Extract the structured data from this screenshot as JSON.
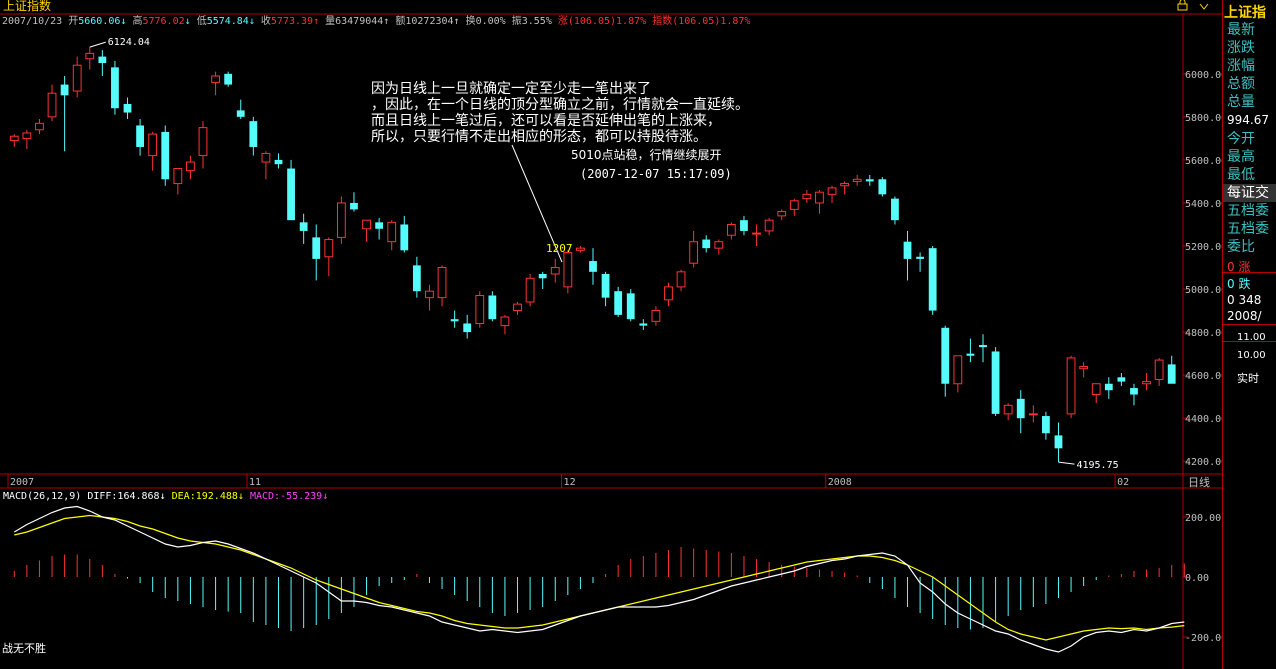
{
  "window": {
    "title": "上证指数",
    "footer_text": "战无不胜"
  },
  "header": {
    "date": "2007/10/23",
    "open_label": "开",
    "open_value": "5660.06",
    "open_arrow": "↓",
    "high_label": "高",
    "high_value": "5776.02",
    "high_arrow": "↓",
    "low_label": "低",
    "low_value": "5574.84",
    "low_arrow": "↓",
    "close_label": "收",
    "close_value": "5773.39",
    "close_arrow": "↑",
    "volume_label": "量",
    "volume_value": "63479044",
    "volume_arrow": "↑",
    "amount_label": "额",
    "amount_value": "10272304",
    "amount_arrow": "↑",
    "turnover_label": "换",
    "turnover_value": "0.00%",
    "amplitude_label": "振",
    "amplitude_value": "3.55%",
    "change_label": "涨",
    "change_value": "(106.05)1.87%",
    "index_label": "指数",
    "index_value": "(106.05)1.87%"
  },
  "annotations": {
    "comment_lines": [
      "因为日线上一旦就确定一定至少走一笔出来了",
      "，因此，在一个日线的顶分型确立之前，行情就会一直延续。",
      "而且日线上一笔过后，还可以看是否延伸出笔的上涨来，",
      "所以，只要行情不走出相应的形态，都可以持股待涨。"
    ],
    "note_line1": "5010点站稳，行情继续展开",
    "note_line2": "(2007-12-07 15:17:09)",
    "point_label": "1207",
    "high_marker": "6124.04",
    "low_marker": "4195.75"
  },
  "macd": {
    "title": "MACD(26,12,9)",
    "diff_label": "DIFF:",
    "diff_value": "164.868",
    "diff_arrow": "↓",
    "dea_label": "DEA:",
    "dea_value": "192.488",
    "dea_arrow": "↓",
    "macd_label": "MACD:",
    "macd_value": "-55.239",
    "macd_arrow": "↓"
  },
  "sidebar": {
    "title": "上证指",
    "labels_top": [
      "最新",
      "涨跌",
      "涨幅",
      "总额",
      "总量"
    ],
    "total_volume_value": "994.67",
    "labels_mid": [
      "今开",
      "最高",
      "最低"
    ],
    "tabs": [
      "每证交",
      "五档委",
      "五档委",
      "委比"
    ],
    "rows": [
      "0 涨",
      "0 跌",
      "0 348"
    ],
    "date_row": "2008/",
    "vol_ticks": [
      "11.00",
      "10.00"
    ],
    "realtime_label": "实时"
  },
  "colors": {
    "up": "#ff3232",
    "down": "#54fcfc",
    "axis": "#b00000",
    "diff_line": "#ffffff",
    "dea_line": "#ffff00",
    "label_yellow": "#ffd400"
  },
  "chart_data": [
    {
      "type": "candlestick",
      "title": "上证指数",
      "ylim": [
        4150,
        6250
      ],
      "yticks": [
        4200,
        4400,
        4600,
        4800,
        5000,
        5200,
        5400,
        5600,
        5800,
        6000
      ],
      "x_labels": [
        {
          "index": 0,
          "label": "2007"
        },
        {
          "index": 19,
          "label": "11"
        },
        {
          "index": 44,
          "label": "12"
        },
        {
          "index": 65,
          "label": "2008"
        },
        {
          "index": 88,
          "label": "02"
        }
      ],
      "bars": [
        [
          5690,
          5720,
          5660,
          5710
        ],
        [
          5700,
          5740,
          5650,
          5725
        ],
        [
          5740,
          5790,
          5720,
          5770
        ],
        [
          5800,
          5950,
          5780,
          5910
        ],
        [
          5950,
          5990,
          5640,
          5900
        ],
        [
          5920,
          6080,
          5890,
          6040
        ],
        [
          6070,
          6124,
          6020,
          6095
        ],
        [
          6080,
          6110,
          5990,
          6050
        ],
        [
          6030,
          6060,
          5810,
          5840
        ],
        [
          5860,
          5890,
          5790,
          5820
        ],
        [
          5760,
          5790,
          5620,
          5660
        ],
        [
          5620,
          5730,
          5550,
          5720
        ],
        [
          5730,
          5760,
          5480,
          5510
        ],
        [
          5490,
          5540,
          5440,
          5560
        ],
        [
          5550,
          5620,
          5510,
          5590
        ],
        [
          5620,
          5780,
          5560,
          5750
        ],
        [
          5960,
          6010,
          5900,
          5990
        ],
        [
          6000,
          6010,
          5940,
          5950
        ],
        [
          5830,
          5880,
          5790,
          5800
        ],
        [
          5780,
          5800,
          5620,
          5660
        ],
        [
          5590,
          5640,
          5510,
          5630
        ],
        [
          5600,
          5630,
          5560,
          5580
        ],
        [
          5560,
          5600,
          5360,
          5320
        ],
        [
          5310,
          5350,
          5210,
          5270
        ],
        [
          5240,
          5300,
          5040,
          5140
        ],
        [
          5150,
          5240,
          5060,
          5230
        ],
        [
          5240,
          5430,
          5210,
          5400
        ],
        [
          5400,
          5450,
          5360,
          5370
        ],
        [
          5280,
          5320,
          5220,
          5320
        ],
        [
          5310,
          5330,
          5230,
          5280
        ],
        [
          5220,
          5320,
          5180,
          5310
        ],
        [
          5300,
          5340,
          5170,
          5180
        ],
        [
          5110,
          5150,
          4960,
          4990
        ],
        [
          4960,
          5020,
          4900,
          4990
        ],
        [
          4960,
          5110,
          4920,
          5100
        ],
        [
          4860,
          4900,
          4820,
          4850
        ],
        [
          4840,
          4880,
          4770,
          4800
        ],
        [
          4840,
          4990,
          4820,
          4970
        ],
        [
          4970,
          4990,
          4850,
          4860
        ],
        [
          4830,
          4880,
          4790,
          4870
        ],
        [
          4900,
          4940,
          4880,
          4930
        ],
        [
          4940,
          5070,
          4920,
          5050
        ],
        [
          5070,
          5080,
          5000,
          5050
        ],
        [
          5070,
          5140,
          5030,
          5100
        ],
        [
          5010,
          5180,
          4980,
          5170
        ],
        [
          5180,
          5200,
          5170,
          5190
        ],
        [
          5130,
          5190,
          5020,
          5080
        ],
        [
          5070,
          5080,
          4920,
          4960
        ],
        [
          4990,
          5010,
          4870,
          4880
        ],
        [
          4980,
          5000,
          4850,
          4860
        ],
        [
          4840,
          4860,
          4810,
          4830
        ],
        [
          4850,
          4920,
          4830,
          4900
        ],
        [
          4950,
          5030,
          4920,
          5010
        ],
        [
          5010,
          5090,
          4990,
          5080
        ],
        [
          5120,
          5270,
          5100,
          5220
        ],
        [
          5230,
          5250,
          5170,
          5190
        ],
        [
          5190,
          5230,
          5160,
          5220
        ],
        [
          5250,
          5310,
          5230,
          5300
        ],
        [
          5320,
          5340,
          5250,
          5270
        ],
        [
          5260,
          5300,
          5200,
          5260
        ],
        [
          5270,
          5330,
          5250,
          5320
        ],
        [
          5340,
          5370,
          5320,
          5360
        ],
        [
          5370,
          5420,
          5340,
          5410
        ],
        [
          5420,
          5460,
          5400,
          5440
        ],
        [
          5400,
          5460,
          5350,
          5450
        ],
        [
          5440,
          5480,
          5400,
          5470
        ],
        [
          5480,
          5500,
          5440,
          5490
        ],
        [
          5500,
          5530,
          5480,
          5510
        ],
        [
          5510,
          5530,
          5480,
          5500
        ],
        [
          5510,
          5520,
          5430,
          5440
        ],
        [
          5420,
          5430,
          5300,
          5320
        ],
        [
          5220,
          5270,
          5040,
          5140
        ],
        [
          5150,
          5170,
          5080,
          5140
        ],
        [
          5190,
          5200,
          4880,
          4900
        ],
        [
          4820,
          4830,
          4500,
          4560
        ],
        [
          4560,
          4680,
          4520,
          4690
        ],
        [
          4700,
          4770,
          4660,
          4690
        ],
        [
          4740,
          4790,
          4660,
          4730
        ],
        [
          4710,
          4730,
          4410,
          4420
        ],
        [
          4420,
          4470,
          4390,
          4460
        ],
        [
          4490,
          4530,
          4330,
          4400
        ],
        [
          4420,
          4460,
          4380,
          4420
        ],
        [
          4410,
          4430,
          4300,
          4330
        ],
        [
          4320,
          4380,
          4196,
          4260
        ],
        [
          4420,
          4690,
          4400,
          4680
        ],
        [
          4630,
          4660,
          4590,
          4640
        ],
        [
          4510,
          4530,
          4470,
          4560
        ],
        [
          4560,
          4590,
          4490,
          4530
        ],
        [
          4590,
          4610,
          4550,
          4570
        ],
        [
          4540,
          4560,
          4460,
          4510
        ],
        [
          4560,
          4610,
          4530,
          4570
        ],
        [
          4580,
          4680,
          4550,
          4670
        ],
        [
          4650,
          4690,
          4570,
          4560
        ]
      ]
    },
    {
      "type": "line",
      "title": "MACD(26,12,9)",
      "ylim": [
        -260,
        290
      ],
      "yticks": [
        -200,
        0,
        200
      ],
      "series": [
        {
          "name": "DIFF",
          "values": [
            150,
            175,
            195,
            215,
            230,
            235,
            220,
            200,
            190,
            170,
            150,
            130,
            110,
            100,
            105,
            115,
            120,
            110,
            95,
            80,
            60,
            40,
            20,
            0,
            -20,
            -50,
            -80,
            -80,
            -85,
            -95,
            -100,
            -110,
            -120,
            -130,
            -150,
            -160,
            -170,
            -180,
            -175,
            -180,
            -185,
            -180,
            -175,
            -160,
            -145,
            -130,
            -120,
            -110,
            -100,
            -100,
            -100,
            -100,
            -95,
            -85,
            -75,
            -60,
            -45,
            -30,
            -20,
            -10,
            0,
            10,
            20,
            35,
            45,
            55,
            60,
            70,
            75,
            80,
            70,
            40,
            -20,
            -50,
            -90,
            -120,
            -140,
            -160,
            -180,
            -190,
            -210,
            -225,
            -240,
            -250,
            -230,
            -200,
            -185,
            -180,
            -185,
            -175,
            -180,
            -170,
            -155,
            -150
          ]
        },
        {
          "name": "DEA",
          "values": [
            140,
            150,
            165,
            180,
            195,
            200,
            205,
            200,
            195,
            185,
            170,
            160,
            145,
            130,
            120,
            115,
            110,
            100,
            90,
            75,
            60,
            45,
            30,
            10,
            -10,
            -25,
            -40,
            -55,
            -70,
            -85,
            -95,
            -105,
            -115,
            -120,
            -130,
            -145,
            -155,
            -160,
            -165,
            -170,
            -170,
            -165,
            -160,
            -150,
            -140,
            -130,
            -120,
            -110,
            -100,
            -90,
            -80,
            -70,
            -60,
            -50,
            -40,
            -30,
            -20,
            -10,
            0,
            10,
            20,
            30,
            40,
            50,
            55,
            60,
            65,
            70,
            70,
            65,
            55,
            40,
            20,
            0,
            -30,
            -60,
            -90,
            -120,
            -150,
            -175,
            -190,
            -200,
            -210,
            -200,
            -190,
            -180,
            -175,
            -170,
            -172,
            -170,
            -175,
            -170,
            -167,
            -162
          ]
        },
        {
          "name": "MACD",
          "values": [
            20,
            40,
            55,
            70,
            75,
            75,
            60,
            40,
            10,
            -5,
            -20,
            -50,
            -70,
            -80,
            -90,
            -100,
            -110,
            -115,
            -120,
            -150,
            -160,
            -170,
            -180,
            -170,
            -160,
            -140,
            -120,
            -100,
            -60,
            -30,
            -20,
            -10,
            10,
            -20,
            -40,
            -60,
            -80,
            -100,
            -120,
            -130,
            -120,
            -110,
            -100,
            -80,
            -60,
            -40,
            -20,
            10,
            40,
            60,
            70,
            80,
            90,
            100,
            95,
            90,
            85,
            80,
            70,
            60,
            50,
            40,
            35,
            30,
            25,
            20,
            15,
            5,
            -20,
            -40,
            -70,
            -100,
            -120,
            -140,
            -160,
            -170,
            -175,
            -170,
            -150,
            -130,
            -110,
            -100,
            -90,
            -70,
            -50,
            -30,
            -10,
            5,
            10,
            20,
            25,
            30,
            40,
            45
          ]
        }
      ]
    }
  ]
}
